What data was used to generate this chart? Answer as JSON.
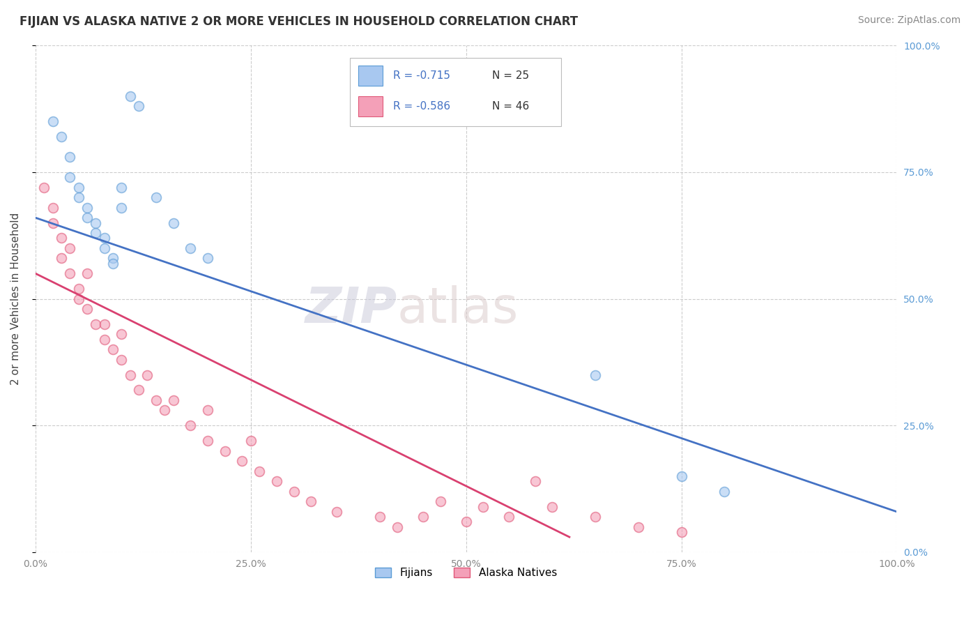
{
  "title": "FIJIAN VS ALASKA NATIVE 2 OR MORE VEHICLES IN HOUSEHOLD CORRELATION CHART",
  "source": "Source: ZipAtlas.com",
  "ylabel": "2 or more Vehicles in Household",
  "xlim": [
    0,
    100
  ],
  "ylim": [
    0,
    100
  ],
  "xtick_labels": [
    "0.0%",
    "25.0%",
    "50.0%",
    "75.0%",
    "100.0%"
  ],
  "xtick_vals": [
    0,
    25,
    50,
    75,
    100
  ],
  "ytick_vals": [
    0,
    25,
    50,
    75,
    100
  ],
  "ytick_labels_right": [
    "0.0%",
    "25.0%",
    "50.0%",
    "75.0%",
    "100.0%"
  ],
  "fijian_color": "#A8C8F0",
  "alaska_color": "#F4A0B8",
  "fijian_edge_color": "#5B9BD5",
  "alaska_edge_color": "#E05878",
  "fijian_line_color": "#4472C4",
  "alaska_line_color": "#D94070",
  "background_color": "#FFFFFF",
  "legend_fijian_r": "R = -0.715",
  "legend_fijian_n": "N = 25",
  "legend_alaska_r": "R = -0.586",
  "legend_alaska_n": "N = 46",
  "legend_label_fijian": "Fijians",
  "legend_label_alaska": "Alaska Natives",
  "watermark_zip": "ZIP",
  "watermark_atlas": "atlas",
  "fijian_scatter_x": [
    2,
    3,
    4,
    4,
    5,
    5,
    6,
    6,
    7,
    7,
    8,
    8,
    9,
    9,
    10,
    10,
    11,
    12,
    14,
    16,
    18,
    20,
    65,
    75,
    80
  ],
  "fijian_scatter_y": [
    85,
    82,
    78,
    74,
    72,
    70,
    68,
    66,
    65,
    63,
    62,
    60,
    58,
    57,
    72,
    68,
    90,
    88,
    70,
    65,
    60,
    58,
    35,
    15,
    12
  ],
  "alaska_scatter_x": [
    1,
    2,
    2,
    3,
    3,
    4,
    4,
    5,
    5,
    6,
    6,
    7,
    8,
    8,
    9,
    10,
    10,
    11,
    12,
    13,
    14,
    15,
    16,
    18,
    20,
    20,
    22,
    24,
    25,
    26,
    28,
    30,
    32,
    35,
    40,
    42,
    45,
    47,
    50,
    52,
    55,
    58,
    60,
    65,
    70,
    75
  ],
  "alaska_scatter_y": [
    72,
    65,
    68,
    62,
    58,
    55,
    60,
    52,
    50,
    48,
    55,
    45,
    45,
    42,
    40,
    38,
    43,
    35,
    32,
    35,
    30,
    28,
    30,
    25,
    22,
    28,
    20,
    18,
    22,
    16,
    14,
    12,
    10,
    8,
    7,
    5,
    7,
    10,
    6,
    9,
    7,
    14,
    9,
    7,
    5,
    4
  ],
  "fijian_trend_x0": 0,
  "fijian_trend_y0": 66,
  "fijian_trend_x1": 100,
  "fijian_trend_y1": 8,
  "alaska_trend_x0": 0,
  "alaska_trend_y0": 55,
  "alaska_trend_x1": 62,
  "alaska_trend_y1": 3,
  "title_fontsize": 12,
  "axis_label_fontsize": 11,
  "tick_fontsize": 10,
  "source_fontsize": 10,
  "dot_size": 100,
  "dot_alpha": 0.6,
  "dot_linewidth": 1.2
}
